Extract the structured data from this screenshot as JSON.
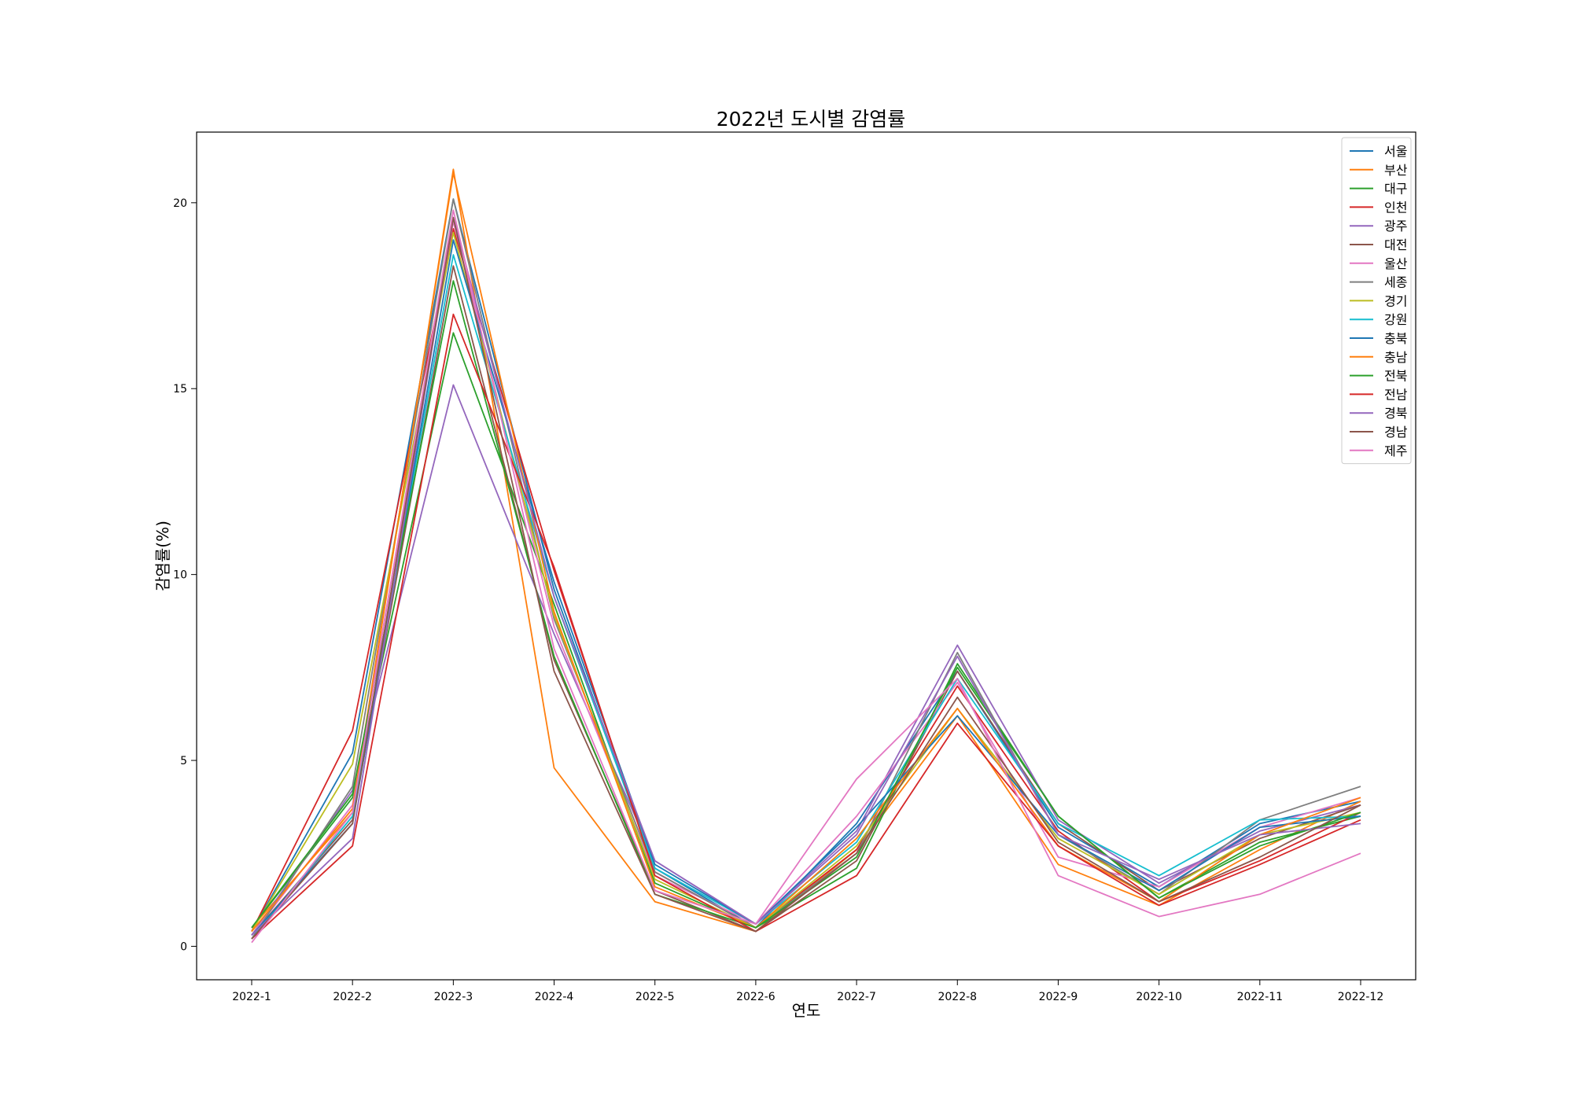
{
  "chart_data": {
    "type": "line",
    "title": "2022년 도시별 감염률",
    "xlabel": "연도",
    "ylabel": "감염률(%)",
    "categories": [
      "2022-1",
      "2022-2",
      "2022-3",
      "2022-4",
      "2022-5",
      "2022-6",
      "2022-7",
      "2022-8",
      "2022-9",
      "2022-10",
      "2022-11",
      "2022-12"
    ],
    "yticks": [
      0,
      5,
      10,
      15,
      20
    ],
    "ylim": [
      -0.9,
      21.9
    ],
    "grid": false,
    "legend": "top-right",
    "series": [
      {
        "name": "서울",
        "color": "#1f77b4",
        "values": [
          0.4,
          5.2,
          20.1,
          9.6,
          2.1,
          0.5,
          3.3,
          7.4,
          3.2,
          1.6,
          3.3,
          3.9
        ]
      },
      {
        "name": "부산",
        "color": "#ff7f0e",
        "values": [
          0.5,
          3.6,
          20.9,
          4.8,
          1.2,
          0.4,
          2.6,
          6.2,
          2.2,
          1.1,
          2.6,
          3.9
        ]
      },
      {
        "name": "대구",
        "color": "#2ca02c",
        "values": [
          0.5,
          4.0,
          16.5,
          9.2,
          1.7,
          0.5,
          2.1,
          7.6,
          3.5,
          1.3,
          2.8,
          3.5
        ]
      },
      {
        "name": "인천",
        "color": "#d62728",
        "values": [
          0.4,
          5.8,
          19.3,
          10.1,
          2.0,
          0.5,
          2.6,
          7.0,
          3.1,
          1.2,
          2.3,
          3.6
        ]
      },
      {
        "name": "광주",
        "color": "#9467bd",
        "values": [
          0.3,
          4.2,
          15.1,
          8.4,
          2.3,
          0.6,
          3.1,
          8.1,
          3.4,
          1.7,
          3.1,
          3.8
        ]
      },
      {
        "name": "대전",
        "color": "#8c564b",
        "values": [
          0.3,
          3.4,
          18.3,
          7.7,
          1.5,
          0.4,
          2.3,
          7.4,
          3.3,
          1.5,
          2.9,
          3.8
        ]
      },
      {
        "name": "울산",
        "color": "#e377c2",
        "values": [
          0.3,
          3.8,
          19.5,
          8.6,
          1.9,
          0.6,
          3.5,
          7.1,
          2.4,
          1.6,
          3.2,
          4.0
        ]
      },
      {
        "name": "세종",
        "color": "#7f7f7f",
        "values": [
          0.2,
          4.3,
          20.1,
          8.8,
          2.0,
          0.5,
          2.5,
          7.9,
          3.0,
          1.4,
          3.4,
          4.3
        ]
      },
      {
        "name": "경기",
        "color": "#bcbd22",
        "values": [
          0.4,
          4.9,
          19.2,
          8.9,
          1.8,
          0.5,
          2.7,
          6.4,
          2.9,
          1.4,
          3.0,
          3.6
        ]
      },
      {
        "name": "강원",
        "color": "#17becf",
        "values": [
          0.2,
          3.5,
          18.6,
          9.4,
          2.1,
          0.6,
          2.8,
          7.2,
          3.3,
          1.9,
          3.4,
          3.5
        ]
      },
      {
        "name": "충북",
        "color": "#1f77b4",
        "values": [
          0.3,
          3.3,
          19.0,
          9.8,
          2.2,
          0.6,
          3.2,
          6.2,
          3.0,
          1.5,
          3.2,
          3.5
        ]
      },
      {
        "name": "충남",
        "color": "#ff7f0e",
        "values": [
          0.4,
          3.7,
          20.8,
          9.0,
          1.6,
          0.5,
          2.9,
          6.4,
          2.7,
          1.2,
          3.0,
          4.0
        ]
      },
      {
        "name": "전북",
        "color": "#2ca02c",
        "values": [
          0.5,
          4.1,
          17.9,
          7.8,
          1.4,
          0.5,
          2.4,
          7.5,
          3.5,
          1.3,
          2.7,
          3.6
        ]
      },
      {
        "name": "전남",
        "color": "#d62728",
        "values": [
          0.2,
          2.7,
          17.0,
          10.2,
          1.9,
          0.4,
          1.9,
          6.0,
          2.7,
          1.1,
          2.2,
          3.4
        ]
      },
      {
        "name": "경북",
        "color": "#9467bd",
        "values": [
          0.3,
          2.9,
          19.6,
          9.4,
          2.3,
          0.6,
          3.0,
          7.8,
          3.0,
          1.8,
          3.0,
          3.3
        ]
      },
      {
        "name": "경남",
        "color": "#8c564b",
        "values": [
          0.2,
          3.3,
          19.6,
          7.4,
          1.4,
          0.4,
          2.5,
          6.7,
          2.8,
          1.2,
          2.4,
          3.8
        ]
      },
      {
        "name": "제주",
        "color": "#e377c2",
        "values": [
          0.1,
          3.6,
          19.8,
          8.0,
          1.5,
          0.6,
          4.5,
          7.2,
          1.9,
          0.8,
          1.4,
          2.5
        ]
      }
    ]
  }
}
